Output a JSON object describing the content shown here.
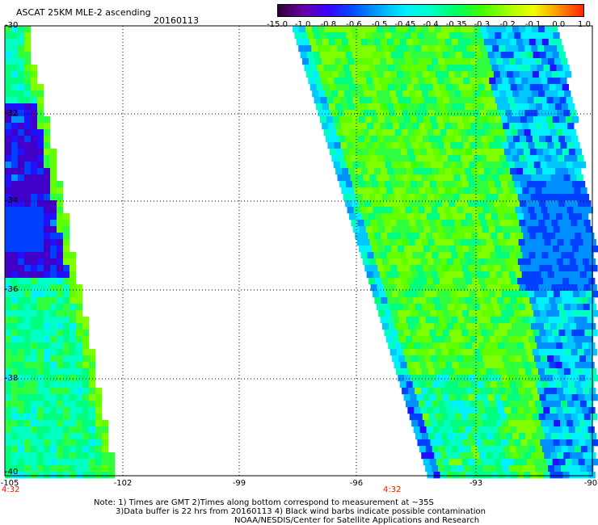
{
  "header": {
    "title": "ASCAT 25KM MLE-2 ascending",
    "date": "20160113"
  },
  "colorbar": {
    "labels": [
      "-15.0",
      "-1.0",
      "-0.8",
      "-0.6",
      "-0.5",
      "-0.45",
      "-0.4",
      "-0.35",
      "-0.3",
      "-0.2",
      "-0.1",
      "0.0",
      "1.0"
    ],
    "colors": [
      "#2a0030",
      "#6a00a8",
      "#3a00ff",
      "#0050ff",
      "#00a8ff",
      "#00f0ff",
      "#00ffc8",
      "#00ff60",
      "#40ff00",
      "#a0ff00",
      "#f0ff00",
      "#ff9000",
      "#ff2000"
    ]
  },
  "map": {
    "lat_labels": [
      "-30",
      "-32",
      "-34",
      "-36",
      "-38",
      "-40"
    ],
    "lon_labels": [
      "-105",
      "-102",
      "-99",
      "-96",
      "-93",
      "-90"
    ],
    "time_labels": [
      "4:32",
      "4:32"
    ]
  },
  "footer": {
    "line1": "Note: 1) Times are GMT 2)Times along bottom correspond to measurement at ~35S",
    "line2": "3)Data buffer is 22 hrs from 20160113 4) Black wind barbs indicate possible contamination",
    "line3": "NOAA/NESDIS/Center for Satellite Applications and Research"
  }
}
